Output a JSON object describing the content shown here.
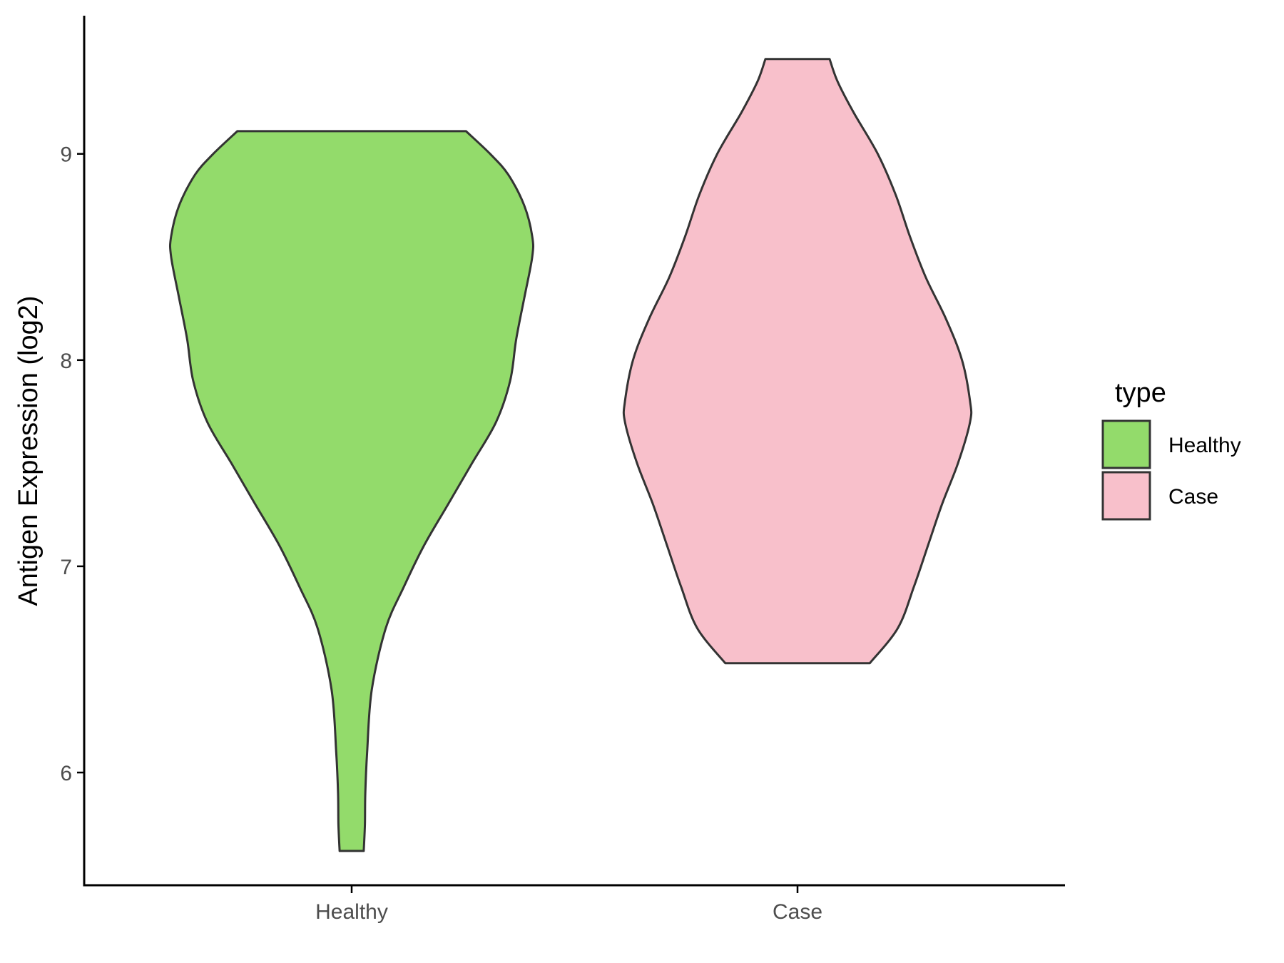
{
  "chart_data": {
    "type": "violin",
    "title": "",
    "xlabel": "",
    "ylabel": "Antigen Expression (log2)",
    "ylim": [
      5.45,
      9.67
    ],
    "yticks": [
      6,
      7,
      8,
      9
    ],
    "categories": [
      "Healthy",
      "Case"
    ],
    "grid": false,
    "legend": {
      "title": "type",
      "position": "right",
      "entries": [
        "Healthy",
        "Case"
      ]
    },
    "series": [
      {
        "name": "Healthy",
        "color": "#93DB6B",
        "min": 5.62,
        "max": 9.11,
        "density_profile": [
          {
            "y": 5.62,
            "w": 0.06
          },
          {
            "y": 5.75,
            "w": 0.066
          },
          {
            "y": 5.9,
            "w": 0.068
          },
          {
            "y": 6.1,
            "w": 0.077
          },
          {
            "y": 6.4,
            "w": 0.1
          },
          {
            "y": 6.7,
            "w": 0.17
          },
          {
            "y": 6.9,
            "w": 0.26
          },
          {
            "y": 7.1,
            "w": 0.36
          },
          {
            "y": 7.3,
            "w": 0.48
          },
          {
            "y": 7.5,
            "w": 0.6
          },
          {
            "y": 7.7,
            "w": 0.72
          },
          {
            "y": 7.9,
            "w": 0.79
          },
          {
            "y": 8.1,
            "w": 0.82
          },
          {
            "y": 8.3,
            "w": 0.86
          },
          {
            "y": 8.5,
            "w": 0.9
          },
          {
            "y": 8.6,
            "w": 0.9
          },
          {
            "y": 8.75,
            "w": 0.86
          },
          {
            "y": 8.9,
            "w": 0.78
          },
          {
            "y": 9.0,
            "w": 0.69
          },
          {
            "y": 9.11,
            "w": 0.57
          }
        ]
      },
      {
        "name": "Case",
        "color": "#F8C0CB",
        "min": 6.53,
        "max": 9.46,
        "density_profile": [
          {
            "y": 6.53,
            "w": 0.36
          },
          {
            "y": 6.7,
            "w": 0.5
          },
          {
            "y": 6.9,
            "w": 0.58
          },
          {
            "y": 7.1,
            "w": 0.65
          },
          {
            "y": 7.3,
            "w": 0.72
          },
          {
            "y": 7.5,
            "w": 0.8
          },
          {
            "y": 7.7,
            "w": 0.86
          },
          {
            "y": 7.8,
            "w": 0.86
          },
          {
            "y": 8.0,
            "w": 0.82
          },
          {
            "y": 8.2,
            "w": 0.74
          },
          {
            "y": 8.4,
            "w": 0.64
          },
          {
            "y": 8.6,
            "w": 0.56
          },
          {
            "y": 8.8,
            "w": 0.49
          },
          {
            "y": 9.0,
            "w": 0.4
          },
          {
            "y": 9.2,
            "w": 0.28
          },
          {
            "y": 9.35,
            "w": 0.2
          },
          {
            "y": 9.46,
            "w": 0.16
          }
        ]
      }
    ]
  }
}
